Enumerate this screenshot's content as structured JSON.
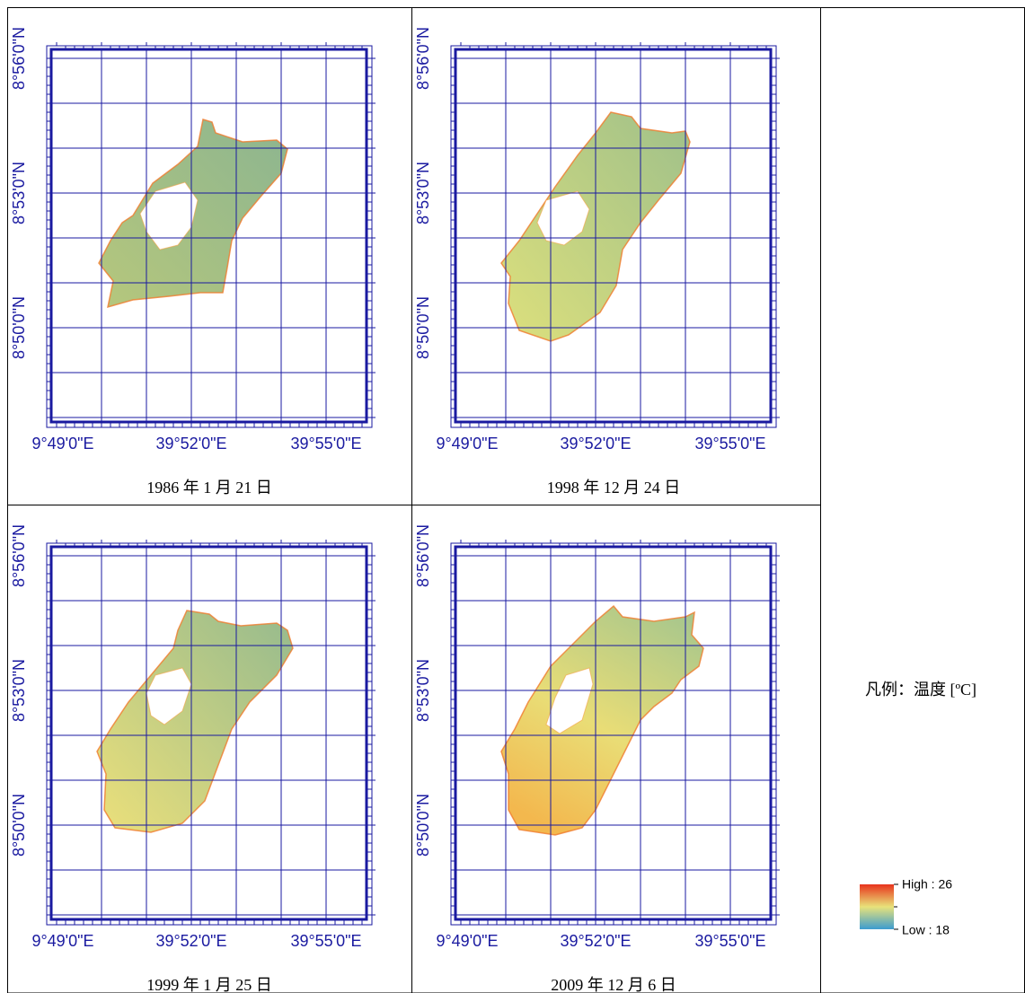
{
  "panels": [
    {
      "caption": "1986 年 1 月 21 日"
    },
    {
      "caption": "1998 年 12 月 24 日"
    },
    {
      "caption": "1999 年 1 月 25 日"
    },
    {
      "caption": "2009 年 12 月 6 日"
    }
  ],
  "axes": {
    "lat_labels": [
      "8°56'0\"N",
      "8°53'0\"N",
      "8°50'0\"N"
    ],
    "lon_labels": [
      "9°49'0\"E",
      "39°52'0\"E",
      "39°55'0\"E"
    ]
  },
  "legend": {
    "title": "凡例：温度 [ºC]",
    "high": "High : 26",
    "low": "Low : 18"
  }
}
